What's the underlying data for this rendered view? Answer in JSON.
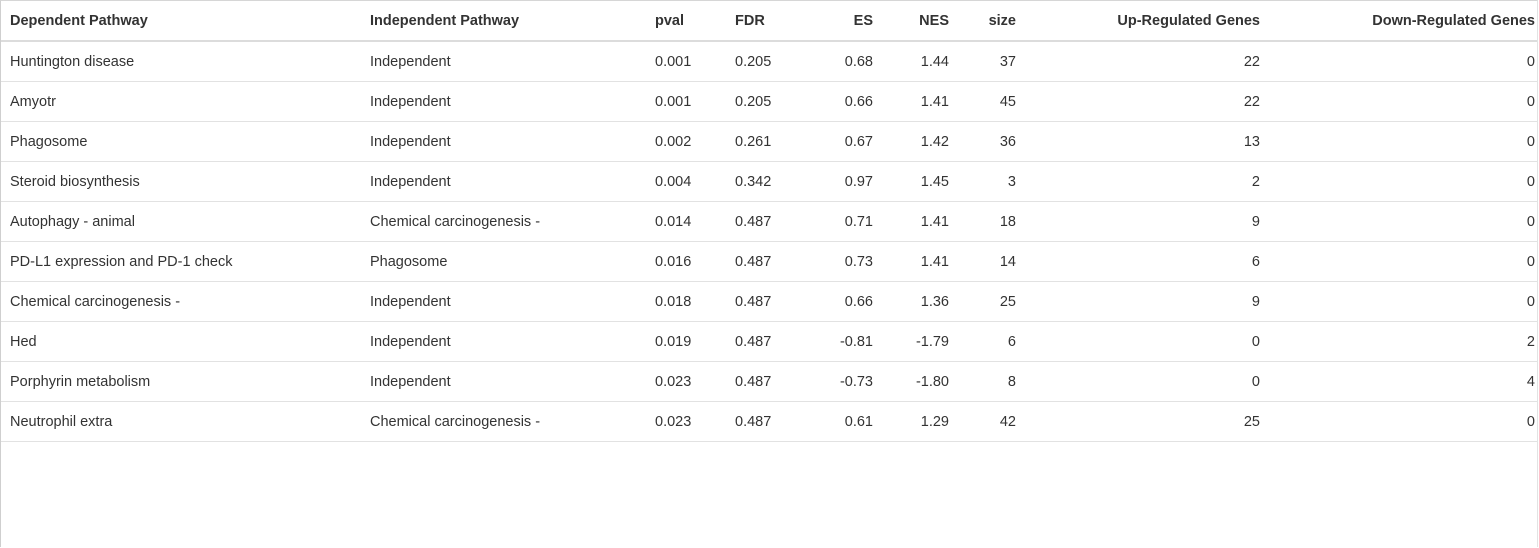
{
  "table": {
    "headers": {
      "dependent": "Dependent Pathway",
      "independent": "Independent Pathway",
      "pval": "pval",
      "fdr": "FDR",
      "es": "ES",
      "nes": "NES",
      "size": "size",
      "up": "Up-Regulated Genes",
      "down": "Down-Regulated Genes"
    },
    "rows": [
      {
        "dependent": "Huntington disease",
        "independent": "Independent",
        "pval": "0.001",
        "fdr": "0.205",
        "es": "0.68",
        "nes": "1.44",
        "size": "37",
        "up": "22",
        "down": "0"
      },
      {
        "dependent": "Amyotr",
        "independent": "Independent",
        "pval": "0.001",
        "fdr": "0.205",
        "es": "0.66",
        "nes": "1.41",
        "size": "45",
        "up": "22",
        "down": "0"
      },
      {
        "dependent": "Phagosome",
        "independent": "Independent",
        "pval": "0.002",
        "fdr": "0.261",
        "es": "0.67",
        "nes": "1.42",
        "size": "36",
        "up": "13",
        "down": "0"
      },
      {
        "dependent": "Steroid biosynthesis",
        "independent": "Independent",
        "pval": "0.004",
        "fdr": "0.342",
        "es": "0.97",
        "nes": "1.45",
        "size": "3",
        "up": "2",
        "down": "0"
      },
      {
        "dependent": "Autophagy - animal",
        "independent": "Chemical carcinogenesis -",
        "pval": "0.014",
        "fdr": "0.487",
        "es": "0.71",
        "nes": "1.41",
        "size": "18",
        "up": "9",
        "down": "0"
      },
      {
        "dependent": "PD-L1 expression and PD-1 check",
        "independent": "Phagosome",
        "pval": "0.016",
        "fdr": "0.487",
        "es": "0.73",
        "nes": "1.41",
        "size": "14",
        "up": "6",
        "down": "0"
      },
      {
        "dependent": "Chemical carcinogenesis -",
        "independent": "Independent",
        "pval": "0.018",
        "fdr": "0.487",
        "es": "0.66",
        "nes": "1.36",
        "size": "25",
        "up": "9",
        "down": "0"
      },
      {
        "dependent": "Hed",
        "independent": "Independent",
        "pval": "0.019",
        "fdr": "0.487",
        "es": "-0.81",
        "nes": "-1.79",
        "size": "6",
        "up": "0",
        "down": "2"
      },
      {
        "dependent": "Porphyrin metabolism",
        "independent": "Independent",
        "pval": "0.023",
        "fdr": "0.487",
        "es": "-0.73",
        "nes": "-1.80",
        "size": "8",
        "up": "0",
        "down": "4"
      },
      {
        "dependent": "Neutrophil extra",
        "independent": "Chemical carcinogenesis -",
        "pval": "0.023",
        "fdr": "0.487",
        "es": "0.61",
        "nes": "1.29",
        "size": "42",
        "up": "25",
        "down": "0"
      }
    ]
  }
}
